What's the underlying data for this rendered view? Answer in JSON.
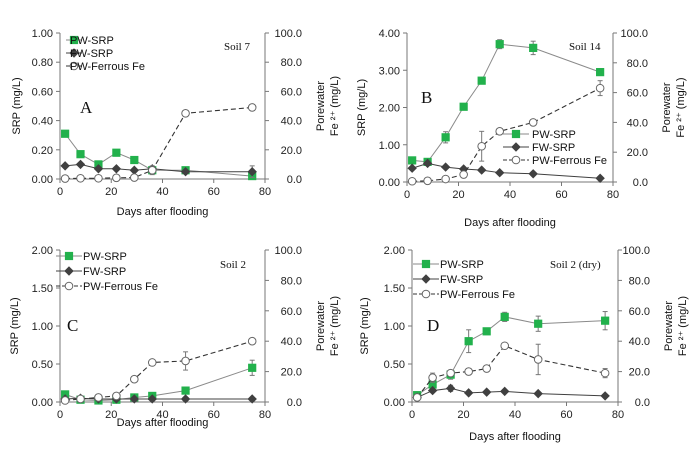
{
  "chart_data": [
    {
      "type": "line",
      "panel": "A",
      "soil_label": "Soil 7",
      "xlabel": "Days after flooding",
      "ylabel": "SRP (mg/L)",
      "ylabel2": [
        "Porewater",
        "Fe ²⁺ (mg/L)"
      ],
      "xlim": [
        0,
        80
      ],
      "xticks": [
        "0",
        "20",
        "40",
        "60",
        "80"
      ],
      "ylim": [
        0,
        1.0
      ],
      "yticks": [
        "0.00",
        "0.20",
        "0.40",
        "0.60",
        "0.80",
        "1.00"
      ],
      "y2lim": [
        0,
        100
      ],
      "y2ticks": [
        "0.0",
        "20.0",
        "40.0",
        "60.0",
        "80.0",
        "100.0"
      ],
      "legend_position": "top-left",
      "series": [
        {
          "name": "PW-SRP",
          "axis": "left",
          "x": [
            2,
            8,
            15,
            22,
            29,
            36,
            49,
            75
          ],
          "values": [
            0.31,
            0.17,
            0.1,
            0.18,
            0.13,
            0.06,
            0.06,
            0.02
          ],
          "err": [
            0,
            0,
            0,
            0,
            0,
            0,
            0,
            0.03
          ]
        },
        {
          "name": "FW-SRP",
          "axis": "left",
          "x": [
            2,
            8,
            15,
            22,
            29,
            36,
            49,
            75
          ],
          "values": [
            0.09,
            0.1,
            0.07,
            0.07,
            0.06,
            0.07,
            0.05,
            0.05
          ],
          "err": [
            0,
            0,
            0,
            0,
            0,
            0,
            0,
            0.04
          ]
        },
        {
          "name": "PW-Ferrous Fe",
          "axis": "right",
          "x": [
            2,
            8,
            15,
            22,
            29,
            36,
            49,
            75
          ],
          "values": [
            0.3,
            0.5,
            0.5,
            0.8,
            1.0,
            6.0,
            45.0,
            49.0
          ],
          "err": [
            0,
            0,
            0,
            0,
            0,
            3.0,
            0,
            0
          ]
        }
      ]
    },
    {
      "type": "line",
      "panel": "B",
      "soil_label": "Soil 14",
      "xlabel": "Days after flooding",
      "ylabel": "SRP (mg/L)",
      "ylabel2": [
        "Porewater",
        "Fe ²⁺ (mg/L)"
      ],
      "xlim": [
        0,
        80
      ],
      "xticks": [
        "0",
        "20",
        "40",
        "60",
        "80"
      ],
      "ylim": [
        0,
        4.0
      ],
      "yticks": [
        "0.00",
        "1.00",
        "2.00",
        "3.00",
        "4.00"
      ],
      "y2lim": [
        0,
        100
      ],
      "y2ticks": [
        "0.0",
        "20.0",
        "40.0",
        "60.0",
        "80.0",
        "100.0"
      ],
      "legend_position": "bottom-right",
      "series": [
        {
          "name": "PW-SRP",
          "axis": "left",
          "x": [
            2,
            8,
            15,
            22,
            29,
            36,
            49,
            75
          ],
          "values": [
            0.58,
            0.54,
            1.2,
            2.02,
            2.72,
            3.7,
            3.6,
            2.95
          ],
          "err": [
            0,
            0,
            0.15,
            0,
            0,
            0.12,
            0.18,
            0.08
          ]
        },
        {
          "name": "FW-SRP",
          "axis": "left",
          "x": [
            2,
            8,
            15,
            22,
            29,
            36,
            49,
            75
          ],
          "values": [
            0.37,
            0.5,
            0.4,
            0.35,
            0.32,
            0.25,
            0.22,
            0.1
          ],
          "err": [
            0,
            0,
            0,
            0,
            0,
            0,
            0,
            0
          ]
        },
        {
          "name": "PW-Ferrous Fe",
          "axis": "right",
          "x": [
            2,
            8,
            15,
            22,
            29,
            36,
            49,
            75
          ],
          "values": [
            0.5,
            0.8,
            2.0,
            5.0,
            24.0,
            34.0,
            40.0,
            63.0
          ],
          "err": [
            0,
            0,
            0,
            0,
            10.0,
            0,
            0,
            5.0
          ]
        }
      ]
    },
    {
      "type": "line",
      "panel": "C",
      "soil_label": "Soil 2",
      "xlabel": "Days after flooding",
      "ylabel": "SRP (mg/L)",
      "ylabel2": [
        "Porewater",
        "Fe ²⁺ (mg/L)"
      ],
      "xlim": [
        0,
        80
      ],
      "xticks": [
        "0",
        "20",
        "40",
        "60",
        "80"
      ],
      "ylim": [
        0,
        2.0
      ],
      "yticks": [
        "0.00",
        "0.50",
        "1.00",
        "1.50",
        "2.00"
      ],
      "y2lim": [
        0,
        100
      ],
      "y2ticks": [
        "0.0",
        "20.0",
        "40.0",
        "60.0",
        "80.0",
        "100.0"
      ],
      "legend_position": "top-left",
      "series": [
        {
          "name": "PW-SRP",
          "axis": "left",
          "x": [
            2,
            8,
            15,
            22,
            29,
            36,
            49,
            75
          ],
          "values": [
            0.1,
            0.03,
            0.02,
            0.03,
            0.06,
            0.08,
            0.15,
            0.45
          ],
          "err": [
            0.03,
            0,
            0.02,
            0,
            0,
            0,
            0.04,
            0.1
          ]
        },
        {
          "name": "FW-SRP",
          "axis": "left",
          "x": [
            2,
            8,
            15,
            22,
            29,
            36,
            49,
            75
          ],
          "values": [
            0.04,
            0.05,
            0.04,
            0.04,
            0.04,
            0.04,
            0.04,
            0.04
          ],
          "err": [
            0,
            0,
            0,
            0,
            0,
            0,
            0,
            0
          ]
        },
        {
          "name": "PW-Ferrous Fe",
          "axis": "right",
          "x": [
            2,
            8,
            15,
            22,
            29,
            36,
            49,
            75
          ],
          "values": [
            1.0,
            2.0,
            3.0,
            4.0,
            15.0,
            26.0,
            27.0,
            40.0
          ],
          "err": [
            0,
            0,
            2.0,
            0,
            0,
            0,
            6.0,
            0
          ]
        }
      ]
    },
    {
      "type": "line",
      "panel": "D",
      "soil_label": "Soil 2 (dry)",
      "xlabel": "Days after flooding",
      "ylabel": "SRP (mg/L)",
      "ylabel2": [
        "Porewater",
        "Fe ²⁺ (mg/L)"
      ],
      "xlim": [
        0,
        80
      ],
      "xticks": [
        "0",
        "20",
        "40",
        "60",
        "80"
      ],
      "ylim": [
        0,
        2.0
      ],
      "yticks": [
        "0.00",
        "0.50",
        "1.00",
        "1.50",
        "2.00"
      ],
      "y2lim": [
        0,
        100
      ],
      "y2ticks": [
        "0.0",
        "20.0",
        "40.0",
        "60.0",
        "80.0",
        "100.0"
      ],
      "legend_position": "top-left",
      "series": [
        {
          "name": "PW-SRP",
          "axis": "left",
          "x": [
            2,
            8,
            15,
            22,
            29,
            36,
            49,
            75
          ],
          "values": [
            0.09,
            0.23,
            0.36,
            0.8,
            0.93,
            1.12,
            1.03,
            1.07
          ],
          "err": [
            0.03,
            0.06,
            0.06,
            0.15,
            0,
            0.06,
            0.1,
            0.12
          ]
        },
        {
          "name": "FW-SRP",
          "axis": "left",
          "x": [
            2,
            8,
            15,
            22,
            29,
            36,
            49,
            75
          ],
          "values": [
            0.06,
            0.15,
            0.18,
            0.12,
            0.13,
            0.14,
            0.11,
            0.08
          ],
          "err": [
            0,
            0,
            0.04,
            0,
            0,
            0,
            0,
            0
          ]
        },
        {
          "name": "PW-Ferrous Fe",
          "axis": "right",
          "x": [
            2,
            8,
            15,
            22,
            29,
            36,
            49,
            75
          ],
          "values": [
            3.0,
            16.0,
            19.0,
            20.0,
            22.0,
            37.0,
            28.0,
            19.0
          ],
          "err": [
            0,
            3.0,
            0,
            2.0,
            0,
            0,
            10.0,
            3.0
          ]
        }
      ]
    }
  ]
}
